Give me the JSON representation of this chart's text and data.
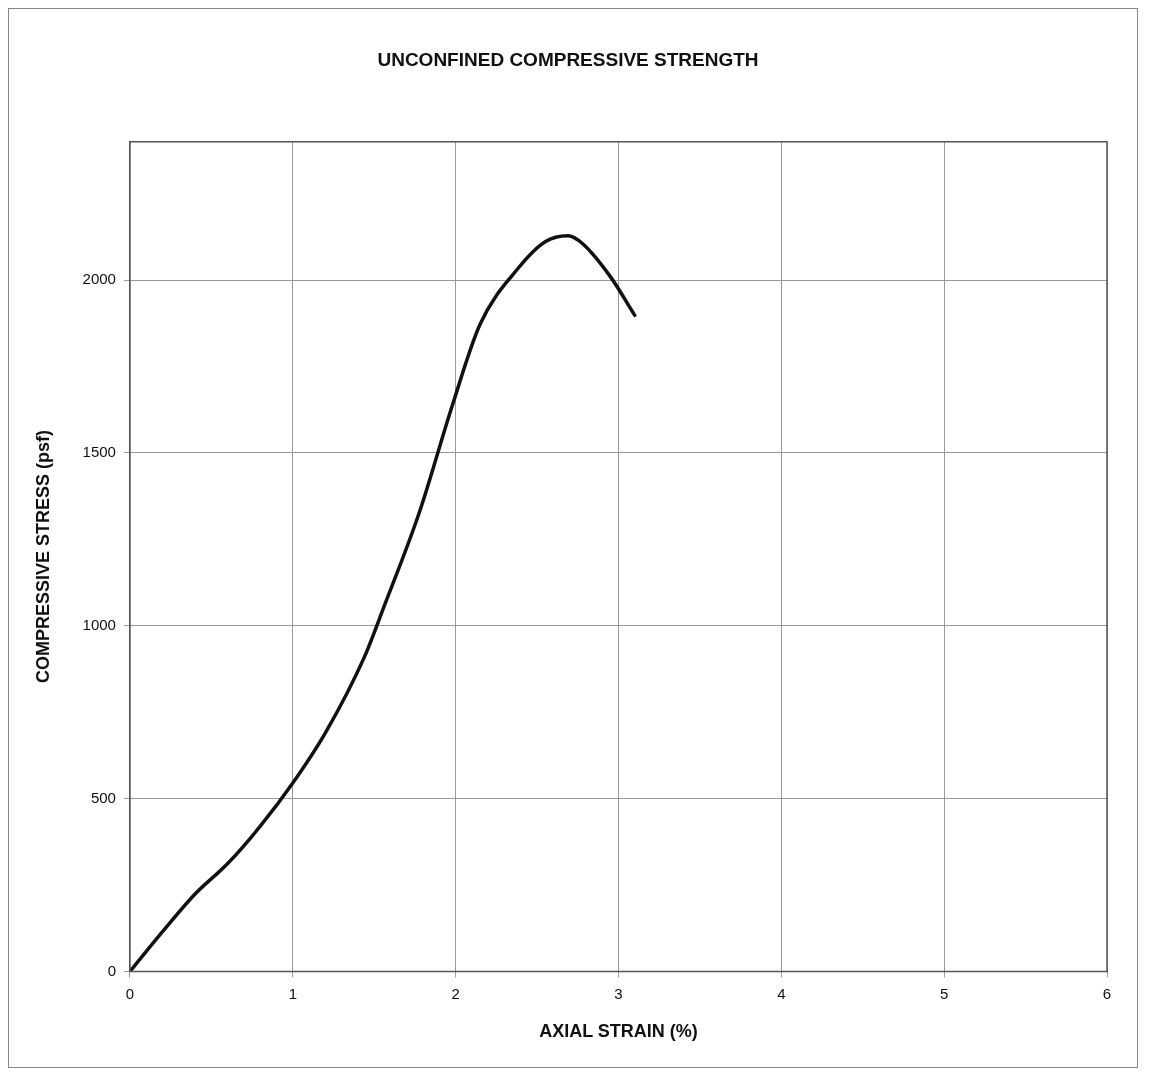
{
  "chart_data": {
    "type": "line",
    "title": "UNCONFINED COMPRESSIVE STRENGTH",
    "xlabel": "AXIAL STRAIN (%)",
    "ylabel": "COMPRESSIVE STRESS (psf)",
    "x": [
      0,
      0.2,
      0.4,
      0.6,
      0.8,
      1.0,
      1.2,
      1.44,
      1.56,
      1.78,
      1.98,
      2.15,
      2.38,
      2.55,
      2.69,
      2.78,
      2.95,
      3.1
    ],
    "series": [
      {
        "color": "#111111",
        "values": [
          0,
          115,
          224,
          312,
          420,
          545,
          690,
          910,
          1055,
          1332,
          1638,
          1872,
          2032,
          2111,
          2128,
          2105,
          2010,
          1898
        ]
      }
    ],
    "xlim": [
      0,
      6
    ],
    "xticks": [
      0,
      1,
      2,
      3,
      4,
      5,
      6
    ],
    "ylim": [
      0,
      2400
    ],
    "yticks": [
      0,
      500,
      1000,
      1500,
      2000
    ],
    "grid": true,
    "legend": false,
    "marker": "none",
    "line_style": "solid"
  }
}
